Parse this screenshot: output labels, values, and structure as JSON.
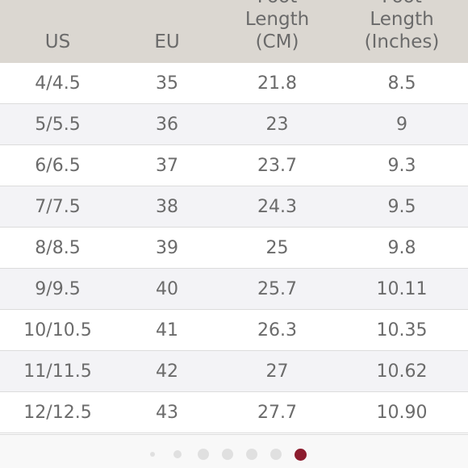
{
  "table": {
    "headers": {
      "us": "US",
      "eu": "EU",
      "cm": "Foot\nLength\n(CM)",
      "inches": "Foot\nLength\n(Inches)"
    },
    "rows": [
      {
        "us": "4/4.5",
        "eu": "35",
        "cm": "21.8",
        "inches": "8.5"
      },
      {
        "us": "5/5.5",
        "eu": "36",
        "cm": "23",
        "inches": "9"
      },
      {
        "us": "6/6.5",
        "eu": "37",
        "cm": "23.7",
        "inches": "9.3"
      },
      {
        "us": "7/7.5",
        "eu": "38",
        "cm": "24.3",
        "inches": "9.5"
      },
      {
        "us": "8/8.5",
        "eu": "39",
        "cm": "25",
        "inches": "9.8"
      },
      {
        "us": "9/9.5",
        "eu": "40",
        "cm": "25.7",
        "inches": "10.11"
      },
      {
        "us": "10/10.5",
        "eu": "41",
        "cm": "26.3",
        "inches": "10.35"
      },
      {
        "us": "11/11.5",
        "eu": "42",
        "cm": "27",
        "inches": "10.62"
      },
      {
        "us": "12/12.5",
        "eu": "43",
        "cm": "27.7",
        "inches": "10.90"
      }
    ]
  },
  "carousel": {
    "total_pages": 7,
    "active_page": 7
  },
  "colors": {
    "header_bg": "#dbd7d1",
    "alt_row_bg": "#f3f3f6",
    "text": "#6b6b6b",
    "active_dot": "#8c1c2e",
    "inactive_dot": "#e0e0e0"
  }
}
